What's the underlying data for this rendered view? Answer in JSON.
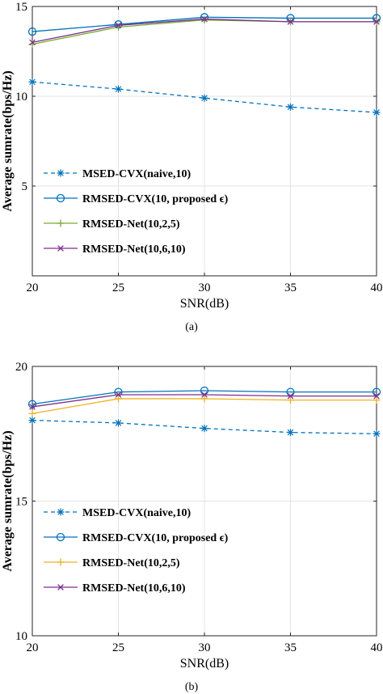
{
  "chart_data": [
    {
      "type": "line",
      "caption": "(a)",
      "xlabel": "SNR(dB)",
      "ylabel": "Average sumrate(bps/Hz)",
      "x": [
        20,
        25,
        30,
        35,
        40
      ],
      "xlim": [
        20,
        40
      ],
      "ylim": [
        0,
        15
      ],
      "xticks": [
        "20",
        "25",
        "30",
        "35",
        "40"
      ],
      "yticks": [
        "5",
        "10",
        "15"
      ],
      "grid": true,
      "legend_position": "bottom-left",
      "series": [
        {
          "name": "MSED-CVX(naive,10)",
          "values": [
            10.8,
            10.4,
            9.9,
            9.4,
            9.1
          ],
          "color": "#0072BD",
          "dash": true,
          "marker": "asterisk"
        },
        {
          "name": "RMSED-CVX(10, proposed ϵ)",
          "values": [
            13.6,
            14.0,
            14.4,
            14.35,
            14.35
          ],
          "color": "#0072BD",
          "dash": false,
          "marker": "circle"
        },
        {
          "name": "RMSED-Net(10,2,5)",
          "values": [
            12.9,
            13.85,
            14.25,
            14.15,
            14.15
          ],
          "color": "#77AC30",
          "dash": false,
          "marker": "plus"
        },
        {
          "name": "RMSED-Net(10,6,10)",
          "values": [
            13.0,
            13.95,
            14.3,
            14.15,
            14.15
          ],
          "color": "#7E2F8E",
          "dash": false,
          "marker": "x"
        }
      ]
    },
    {
      "type": "line",
      "caption": "(b)",
      "xlabel": "SNR(dB)",
      "ylabel": "Average sumrate(bps/Hz)",
      "x": [
        20,
        25,
        30,
        35,
        40
      ],
      "xlim": [
        20,
        40
      ],
      "ylim": [
        10,
        20
      ],
      "xticks": [
        "20",
        "25",
        "30",
        "35",
        "40"
      ],
      "yticks": [
        "10",
        "15",
        "20"
      ],
      "grid": true,
      "legend_position": "bottom-left",
      "series": [
        {
          "name": "MSED-CVX(naive,10)",
          "values": [
            18.0,
            17.9,
            17.7,
            17.55,
            17.5
          ],
          "color": "#0072BD",
          "dash": true,
          "marker": "asterisk"
        },
        {
          "name": "RMSED-CVX(10, proposed ϵ)",
          "values": [
            18.6,
            19.05,
            19.1,
            19.05,
            19.05
          ],
          "color": "#0072BD",
          "dash": false,
          "marker": "circle"
        },
        {
          "name": "RMSED-Net(10,2,5)",
          "values": [
            18.25,
            18.8,
            18.8,
            18.75,
            18.75
          ],
          "color": "#EDB120",
          "dash": false,
          "marker": "plus"
        },
        {
          "name": "RMSED-Net(10,6,10)",
          "values": [
            18.5,
            18.95,
            18.95,
            18.9,
            18.9
          ],
          "color": "#7E2F8E",
          "dash": false,
          "marker": "x"
        }
      ]
    }
  ]
}
